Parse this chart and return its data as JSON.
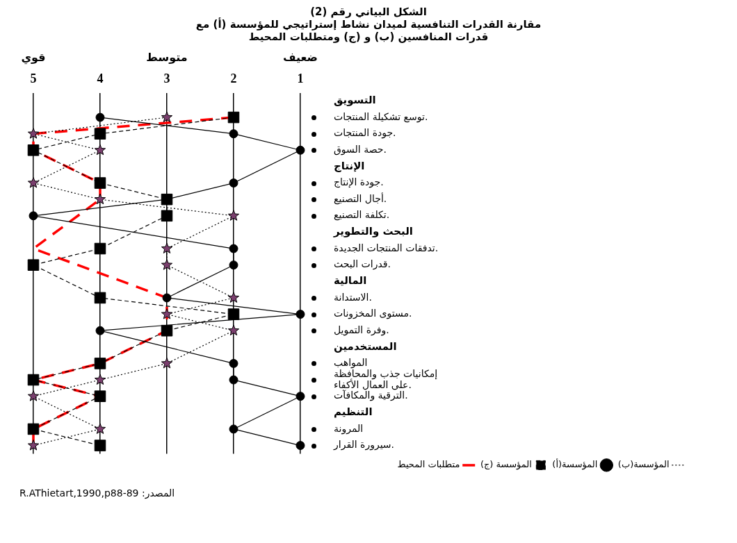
{
  "chart_data": {
    "type": "line",
    "title": "الشكل البياني رقم (2)",
    "subtitle": "مقارنة القدرات التنافسية لميدان نشاط إستراتيجي للمؤسسة (أ) مع\nقدرات المنافسين (ب) و (ج) ومتطلبات المحيط",
    "categories": [
      "التسويق",
      "توسع تشكيلة المنتجات.",
      "جودة المنتجات.",
      "حصة السوق.",
      "الإنتاج",
      "جودة الإنتاج.",
      "أجال التصنيع.",
      "تكلفة التصنيع.",
      "البحث والتطوير",
      "تدفقات المنتجات الجديدة.",
      "قدرات البحث.",
      "المالية",
      "الاستدانة.",
      "مستوى المخزونات.",
      "وفرة التمويل.",
      "المستخدمين",
      "المواهب",
      "إمكانيات جذب والمحافظة\nعلى العمال الأكفاء.",
      "الترقية والمكافآت.",
      "التنظيم",
      "المرونة",
      "سيرورة القرار."
    ],
    "series": [
      {
        "name": "المؤسسة(ب)",
        "color": "#000000",
        "marker": "star",
        "line_style": "dotted",
        "values": [
          null,
          3,
          5,
          4,
          null,
          5,
          4,
          2,
          null,
          3,
          3,
          null,
          2,
          3,
          2,
          null,
          3,
          4,
          5,
          null,
          4,
          5
        ]
      },
      {
        "name": "المؤسسة(أ)",
        "color": "#000000",
        "marker": "circle",
        "line_style": "solid",
        "values": [
          null,
          4,
          2,
          1,
          null,
          2,
          3,
          5,
          null,
          2,
          2,
          null,
          3,
          1,
          4,
          null,
          2,
          2,
          1,
          null,
          2,
          1
        ]
      },
      {
        "name": "المؤسسة (ج)",
        "color": "#000000",
        "marker": "square",
        "line_style": "dashed",
        "values": [
          null,
          2,
          4,
          5,
          null,
          4,
          3,
          3,
          null,
          4,
          5,
          null,
          4,
          2,
          3,
          null,
          4,
          5,
          4,
          null,
          5,
          4
        ]
      },
      {
        "name": "متطلبات المحيط",
        "color": "#ff0000",
        "marker": "none",
        "line_style": "dashed",
        "values": [
          null,
          2,
          5,
          5,
          null,
          4,
          4,
          null,
          null,
          5,
          null,
          null,
          3,
          3,
          3,
          null,
          4,
          5,
          4,
          null,
          5,
          5
        ]
      }
    ],
    "xlim": [
      5,
      1
    ],
    "xticks": [
      5,
      4,
      3,
      2,
      1
    ],
    "orientation": "horizontal",
    "grid": "x",
    "legend": "bottom right",
    "annotations": [
      "قوي",
      "متوسط",
      "ضعيف",
      "المصدر: R.AThietart,1990,p88-89"
    ]
  }
}
